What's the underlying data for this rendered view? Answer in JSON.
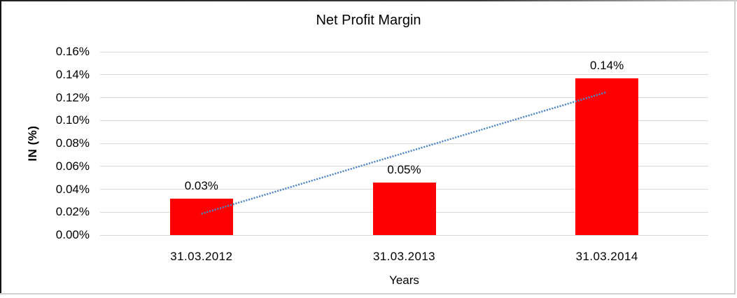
{
  "chart_data": {
    "type": "bar",
    "title": "Net Profit Margin",
    "xlabel": "Years",
    "ylabel": "IN (%)",
    "categories": [
      "31.03.2012",
      "31.03.2013",
      "31.03.2014"
    ],
    "series": [
      {
        "name": "Net Profit Margin",
        "values": [
          0.0315,
          0.046,
          0.137
        ],
        "value_labels": [
          "0.03%",
          "0.05%",
          "0.14%"
        ]
      }
    ],
    "y_ticks": [
      "0.16%",
      "0.14%",
      "0.12%",
      "0.10%",
      "0.08%",
      "0.06%",
      "0.04%",
      "0.02%",
      "0.00%"
    ],
    "ylim": [
      0,
      0.16
    ],
    "grid": true,
    "legend": "none",
    "colors": {
      "bar": "#ff0000",
      "gridline": "#d9d9d9",
      "trendline": "#4f86c6",
      "text": "#000000",
      "background": "#ffffff"
    },
    "trendline": {
      "type": "linear",
      "style": "dotted",
      "color": "#4f86c6",
      "start_category": "31.03.2012",
      "end_category": "31.03.2014",
      "start_value": 0.0185,
      "end_value": 0.1245
    }
  }
}
